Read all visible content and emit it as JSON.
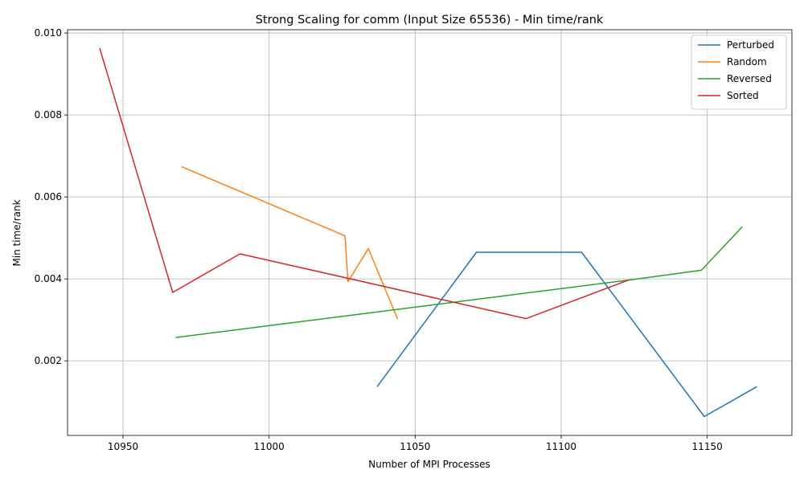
{
  "chart_data": {
    "type": "line",
    "title": "Strong Scaling for comm (Input Size 65536) - Min time/rank",
    "xlabel": "Number of MPI Processes",
    "ylabel": "Min time/rank",
    "xlim": [
      10931,
      11179
    ],
    "ylim": [
      0.00018,
      0.01008
    ],
    "x_ticks": [
      10950,
      11000,
      11050,
      11100,
      11150
    ],
    "x_tick_labels": [
      "10950",
      "11000",
      "11050",
      "11100",
      "11150"
    ],
    "y_ticks": [
      0.002,
      0.004,
      0.006,
      0.008,
      0.01
    ],
    "y_tick_labels": [
      "0.002",
      "0.004",
      "0.006",
      "0.008",
      "0.010"
    ],
    "grid": true,
    "legend_position": "top-right",
    "series": [
      {
        "name": "Perturbed",
        "color": "#1f77b4",
        "points": [
          [
            11037,
            0.00137
          ],
          [
            11071,
            0.00465
          ],
          [
            11107,
            0.00465
          ],
          [
            11149,
            0.00064
          ],
          [
            11167,
            0.00137
          ]
        ]
      },
      {
        "name": "Random",
        "color": "#ff7f0e",
        "points": [
          [
            10970,
            0.00674
          ],
          [
            11026,
            0.00505
          ],
          [
            11027,
            0.00393
          ],
          [
            11034,
            0.00474
          ],
          [
            11044,
            0.00302
          ]
        ]
      },
      {
        "name": "Reversed",
        "color": "#2ca02c",
        "points": [
          [
            10968,
            0.00257
          ],
          [
            11123,
            0.00397
          ],
          [
            11148,
            0.00421
          ],
          [
            11162,
            0.00527
          ]
        ]
      },
      {
        "name": "Sorted",
        "color": "#d62728",
        "points": [
          [
            10942,
            0.00963
          ],
          [
            10967,
            0.00367
          ],
          [
            10990,
            0.00461
          ],
          [
            11088,
            0.00303
          ],
          [
            11123,
            0.00397
          ]
        ]
      }
    ]
  }
}
